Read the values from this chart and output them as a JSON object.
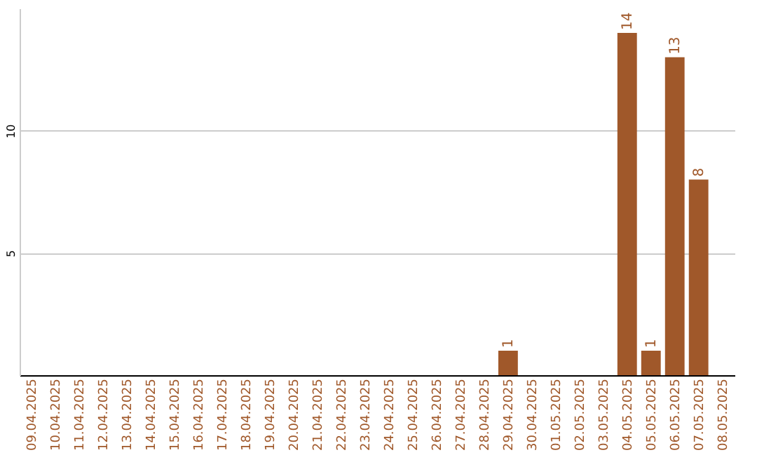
{
  "chart_data": {
    "type": "bar",
    "categories": [
      "09.04.2025",
      "10.04.2025",
      "11.04.2025",
      "12.04.2025",
      "13.04.2025",
      "14.04.2025",
      "15.04.2025",
      "16.04.2025",
      "17.04.2025",
      "18.04.2025",
      "19.04.2025",
      "20.04.2025",
      "21.04.2025",
      "22.04.2025",
      "23.04.2025",
      "24.04.2025",
      "25.04.2025",
      "26.04.2025",
      "27.04.2025",
      "28.04.2025",
      "29.04.2025",
      "30.04.2025",
      "01.05.2025",
      "02.05.2025",
      "03.05.2025",
      "04.05.2025",
      "05.05.2025",
      "06.05.2025",
      "07.05.2025",
      "08.05.2025"
    ],
    "values": [
      0,
      0,
      0,
      0,
      0,
      0,
      0,
      0,
      0,
      0,
      0,
      0,
      0,
      0,
      0,
      0,
      0,
      0,
      0,
      0,
      1,
      0,
      0,
      0,
      0,
      14,
      1,
      13,
      8,
      0
    ],
    "value_labels": [
      null,
      null,
      null,
      null,
      null,
      null,
      null,
      null,
      null,
      null,
      null,
      null,
      null,
      null,
      null,
      null,
      null,
      null,
      null,
      null,
      "1",
      null,
      null,
      null,
      null,
      "14",
      "1",
      "13",
      "8",
      null
    ],
    "color": "#a0582a",
    "ylim": [
      0,
      15
    ],
    "yticks": [
      5,
      10
    ],
    "grid": "y"
  }
}
